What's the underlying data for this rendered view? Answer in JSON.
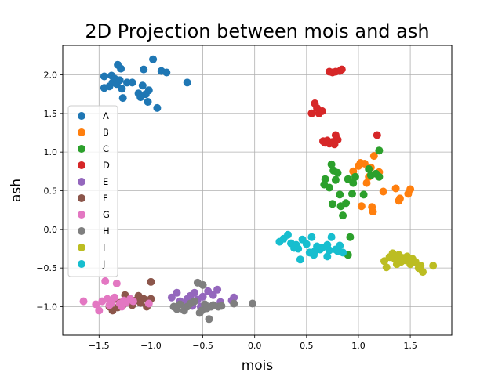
{
  "chart_data": {
    "type": "scatter",
    "title": "2D Projection between mois and ash",
    "xlabel": "mois",
    "ylabel": "ash",
    "xlim": [
      -1.85,
      1.9
    ],
    "ylim": [
      -1.37,
      2.38
    ],
    "xticks": [
      -1.5,
      -1.0,
      -0.5,
      0.0,
      0.5,
      1.0,
      1.5
    ],
    "yticks": [
      -1.0,
      -0.5,
      0.0,
      0.5,
      1.0,
      1.5,
      2.0
    ],
    "xtick_labels": [
      "−1.5",
      "−1.0",
      "−0.5",
      "0.0",
      "0.5",
      "1.0",
      "1.5"
    ],
    "ytick_labels": [
      "−1.0",
      "−0.5",
      "0.0",
      "0.5",
      "1.0",
      "1.5",
      "2.0"
    ],
    "grid": true,
    "legend": "left",
    "series": [
      {
        "name": "A",
        "color": "#1f77b4",
        "points": [
          [
            -1.45,
            1.98
          ],
          [
            -1.45,
            1.83
          ],
          [
            -1.4,
            1.85
          ],
          [
            -1.38,
            1.99
          ],
          [
            -1.37,
            1.9
          ],
          [
            -1.35,
            1.95
          ],
          [
            -1.33,
            1.88
          ],
          [
            -1.32,
            2.13
          ],
          [
            -1.3,
            1.93
          ],
          [
            -1.29,
            2.08
          ],
          [
            -1.28,
            1.82
          ],
          [
            -1.27,
            1.7
          ],
          [
            -1.23,
            1.9
          ],
          [
            -1.18,
            1.9
          ],
          [
            -1.12,
            1.76
          ],
          [
            -1.1,
            1.71
          ],
          [
            -1.08,
            1.86
          ],
          [
            -1.07,
            2.07
          ],
          [
            -1.05,
            1.75
          ],
          [
            -1.03,
            1.65
          ],
          [
            -1.02,
            1.8
          ],
          [
            -0.98,
            2.2
          ],
          [
            -0.94,
            1.57
          ],
          [
            -0.9,
            2.05
          ],
          [
            -0.85,
            2.03
          ],
          [
            -0.65,
            1.9
          ]
        ]
      },
      {
        "name": "B",
        "color": "#ff7f0e",
        "points": [
          [
            0.95,
            0.75
          ],
          [
            1.0,
            0.82
          ],
          [
            1.02,
            0.86
          ],
          [
            1.03,
            0.3
          ],
          [
            1.06,
            0.85
          ],
          [
            1.08,
            0.6
          ],
          [
            1.1,
            0.68
          ],
          [
            1.12,
            0.8
          ],
          [
            1.13,
            0.29
          ],
          [
            1.14,
            0.23
          ],
          [
            1.15,
            0.95
          ],
          [
            1.18,
            0.72
          ],
          [
            1.2,
            0.74
          ],
          [
            1.24,
            0.49
          ],
          [
            1.36,
            0.53
          ],
          [
            1.39,
            0.37
          ],
          [
            1.4,
            0.4
          ],
          [
            1.48,
            0.46
          ],
          [
            1.5,
            0.52
          ]
        ]
      },
      {
        "name": "C",
        "color": "#2ca02c",
        "points": [
          [
            0.67,
            0.58
          ],
          [
            0.68,
            0.65
          ],
          [
            0.74,
            0.84
          ],
          [
            0.76,
            0.76
          ],
          [
            0.78,
            0.64
          ],
          [
            0.8,
            0.73
          ],
          [
            0.82,
            0.45
          ],
          [
            0.83,
            0.3
          ],
          [
            0.85,
            0.18
          ],
          [
            0.88,
            0.34
          ],
          [
            0.9,
            0.65
          ],
          [
            0.92,
            -0.1
          ],
          [
            0.9,
            -0.33
          ],
          [
            0.94,
            0.46
          ],
          [
            0.97,
            0.68
          ],
          [
            1.05,
            0.45
          ],
          [
            1.1,
            0.78
          ],
          [
            1.12,
            0.7
          ],
          [
            1.17,
            0.72
          ],
          [
            1.2,
            1.02
          ],
          [
            1.2,
            0.68
          ],
          [
            0.75,
            0.33
          ],
          [
            0.72,
            0.54
          ],
          [
            0.95,
            0.6
          ]
        ]
      },
      {
        "name": "D",
        "color": "#d62728",
        "points": [
          [
            0.55,
            1.5
          ],
          [
            0.58,
            1.63
          ],
          [
            0.6,
            1.57
          ],
          [
            0.62,
            1.5
          ],
          [
            0.65,
            1.53
          ],
          [
            0.66,
            1.14
          ],
          [
            0.68,
            1.12
          ],
          [
            0.7,
            1.15
          ],
          [
            0.72,
            1.11
          ],
          [
            0.75,
            1.13
          ],
          [
            0.77,
            1.1
          ],
          [
            0.78,
            1.22
          ],
          [
            0.8,
            1.16
          ],
          [
            0.72,
            2.04
          ],
          [
            0.75,
            2.03
          ],
          [
            0.78,
            2.04
          ],
          [
            0.82,
            2.05
          ],
          [
            0.84,
            2.07
          ],
          [
            1.18,
            1.22
          ]
        ]
      },
      {
        "name": "E",
        "color": "#9467bd",
        "points": [
          [
            -0.8,
            -0.88
          ],
          [
            -0.75,
            -0.82
          ],
          [
            -0.72,
            -0.93
          ],
          [
            -0.68,
            -0.96
          ],
          [
            -0.65,
            -0.9
          ],
          [
            -0.62,
            -0.86
          ],
          [
            -0.6,
            -0.99
          ],
          [
            -0.58,
            -0.82
          ],
          [
            -0.55,
            -0.91
          ],
          [
            -0.52,
            -1.0
          ],
          [
            -0.5,
            -0.87
          ],
          [
            -0.45,
            -0.8
          ],
          [
            -0.4,
            -0.85
          ],
          [
            -0.36,
            -0.78
          ],
          [
            -0.33,
            -0.94
          ],
          [
            -0.22,
            -0.92
          ],
          [
            -0.2,
            -0.88
          ]
        ]
      },
      {
        "name": "F",
        "color": "#8c564b",
        "points": [
          [
            -1.4,
            -1.0
          ],
          [
            -1.37,
            -1.05
          ],
          [
            -1.35,
            -0.9
          ],
          [
            -1.3,
            -0.95
          ],
          [
            -1.27,
            -0.98
          ],
          [
            -1.25,
            -0.85
          ],
          [
            -1.2,
            -0.9
          ],
          [
            -1.18,
            -0.98
          ],
          [
            -1.15,
            -0.92
          ],
          [
            -1.12,
            -0.86
          ],
          [
            -1.1,
            -0.95
          ],
          [
            -1.07,
            -0.9
          ],
          [
            -1.04,
            -1.0
          ],
          [
            -1.02,
            -0.94
          ],
          [
            -1.0,
            -0.68
          ],
          [
            -1.0,
            -0.9
          ],
          [
            -1.32,
            -1.01
          ]
        ]
      },
      {
        "name": "G",
        "color": "#e377c2",
        "points": [
          [
            -1.65,
            -0.93
          ],
          [
            -1.53,
            -0.97
          ],
          [
            -1.5,
            -1.05
          ],
          [
            -1.47,
            -0.93
          ],
          [
            -1.44,
            -0.67
          ],
          [
            -1.42,
            -0.9
          ],
          [
            -1.4,
            -0.98
          ],
          [
            -1.38,
            -0.95
          ],
          [
            -1.35,
            -0.88
          ],
          [
            -1.33,
            -0.7
          ],
          [
            -1.3,
            -0.96
          ],
          [
            -1.28,
            -1.0
          ],
          [
            -1.26,
            -0.92
          ],
          [
            -1.24,
            -0.95
          ],
          [
            -1.2,
            -0.9
          ],
          [
            -1.17,
            -0.93
          ],
          [
            -1.02,
            -0.96
          ]
        ]
      },
      {
        "name": "H",
        "color": "#7f7f7f",
        "points": [
          [
            -0.78,
            -1.0
          ],
          [
            -0.75,
            -1.03
          ],
          [
            -0.72,
            -0.97
          ],
          [
            -0.68,
            -1.05
          ],
          [
            -0.65,
            -1.0
          ],
          [
            -0.62,
            -0.96
          ],
          [
            -0.58,
            -0.93
          ],
          [
            -0.55,
            -0.69
          ],
          [
            -0.53,
            -1.08
          ],
          [
            -0.51,
            -1.05
          ],
          [
            -0.5,
            -0.72
          ],
          [
            -0.48,
            -0.97
          ],
          [
            -0.46,
            -1.02
          ],
          [
            -0.44,
            -1.16
          ],
          [
            -0.42,
            -1.0
          ],
          [
            -0.4,
            -0.98
          ],
          [
            -0.35,
            -1.0
          ],
          [
            -0.32,
            -0.99
          ],
          [
            -0.2,
            -0.96
          ],
          [
            -0.02,
            -0.96
          ]
        ]
      },
      {
        "name": "I",
        "color": "#bcbd22",
        "points": [
          [
            1.25,
            -0.41
          ],
          [
            1.27,
            -0.49
          ],
          [
            1.3,
            -0.36
          ],
          [
            1.33,
            -0.31
          ],
          [
            1.35,
            -0.38
          ],
          [
            1.37,
            -0.45
          ],
          [
            1.39,
            -0.33
          ],
          [
            1.41,
            -0.42
          ],
          [
            1.43,
            -0.37
          ],
          [
            1.45,
            -0.4
          ],
          [
            1.47,
            -0.35
          ],
          [
            1.5,
            -0.45
          ],
          [
            1.52,
            -0.38
          ],
          [
            1.55,
            -0.42
          ],
          [
            1.58,
            -0.5
          ],
          [
            1.6,
            -0.47
          ],
          [
            1.62,
            -0.55
          ],
          [
            1.72,
            -0.47
          ]
        ]
      },
      {
        "name": "J",
        "color": "#17becf",
        "points": [
          [
            0.24,
            -0.16
          ],
          [
            0.28,
            -0.12
          ],
          [
            0.32,
            -0.07
          ],
          [
            0.35,
            -0.18
          ],
          [
            0.38,
            -0.24
          ],
          [
            0.4,
            -0.2
          ],
          [
            0.42,
            -0.25
          ],
          [
            0.44,
            -0.39
          ],
          [
            0.46,
            -0.13
          ],
          [
            0.5,
            -0.19
          ],
          [
            0.53,
            -0.3
          ],
          [
            0.55,
            -0.1
          ],
          [
            0.57,
            -0.33
          ],
          [
            0.6,
            -0.22
          ],
          [
            0.63,
            -0.26
          ],
          [
            0.65,
            -0.24
          ],
          [
            0.7,
            -0.2
          ],
          [
            0.72,
            -0.27
          ],
          [
            0.74,
            -0.1
          ],
          [
            0.78,
            -0.26
          ],
          [
            0.8,
            -0.28
          ],
          [
            0.82,
            -0.21
          ],
          [
            0.85,
            -0.3
          ],
          [
            0.7,
            -0.35
          ],
          [
            0.58,
            -0.28
          ]
        ]
      }
    ]
  }
}
